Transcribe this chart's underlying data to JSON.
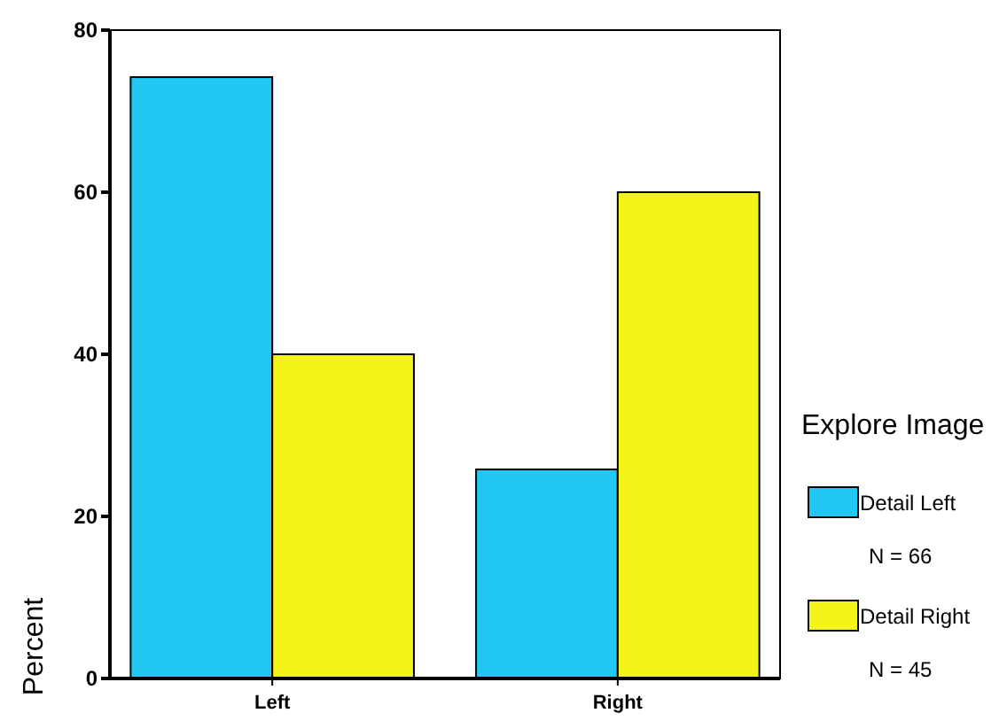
{
  "chart_data": {
    "type": "bar",
    "ylabel": "Percent",
    "legend_title": "Explore Image",
    "categories": [
      "Left",
      "Right"
    ],
    "series": [
      {
        "name": "Detail Left",
        "color": "#22c8f4",
        "values": [
          74.2,
          25.8
        ]
      },
      {
        "name": "Detail Right",
        "color": "#f4f41a",
        "values": [
          40,
          60
        ]
      }
    ],
    "annotations": [
      "N = 66",
      "N = 45"
    ],
    "ylim": [
      0,
      80
    ],
    "yticks": [
      0,
      20,
      40,
      60,
      80
    ],
    "grid": false,
    "legend": "right"
  }
}
